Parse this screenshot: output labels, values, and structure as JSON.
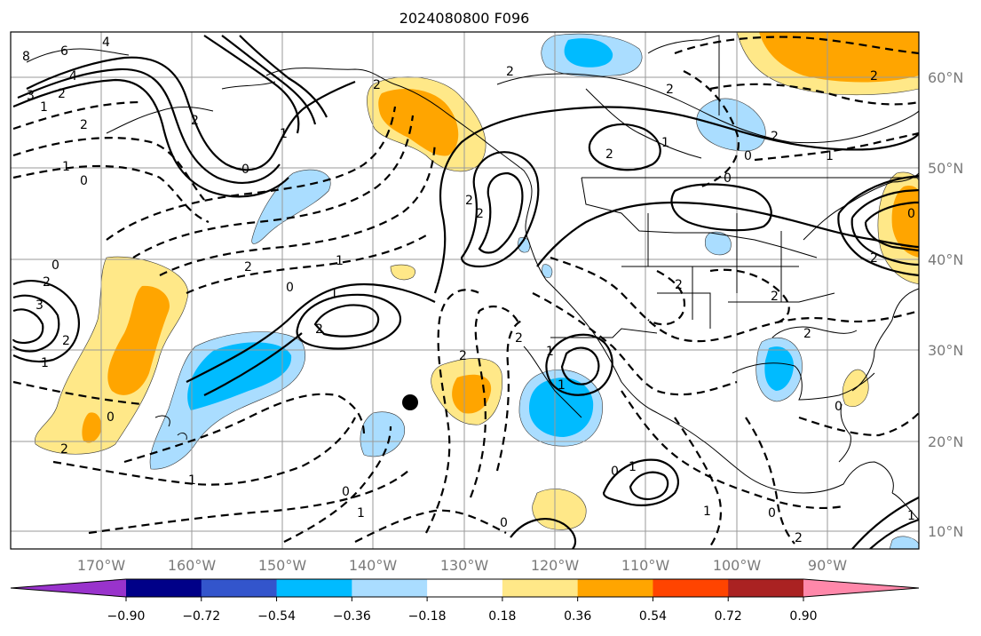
{
  "title": "2024080800 F096",
  "map": {
    "lon_labels": [
      "170°W",
      "160°W",
      "150°W",
      "140°W",
      "130°W",
      "120°W",
      "110°W",
      "100°W",
      "90°W"
    ],
    "lat_labels": [
      "60°N",
      "50°N",
      "40°N",
      "30°N",
      "20°N",
      "10°N"
    ],
    "contour_labels": [
      "8",
      "6",
      "4",
      "3",
      "2",
      "1",
      "2",
      "1",
      "0",
      "4",
      "2",
      "1",
      "0",
      "2",
      "1",
      "2",
      "2",
      "0",
      "2",
      "1",
      "2",
      "2",
      "0",
      "1",
      "2",
      "1",
      "2",
      "0",
      "2",
      "0",
      "1",
      "2",
      "2",
      "2",
      "0",
      "1",
      "2",
      "1",
      "0",
      "2",
      "0",
      "2",
      "3",
      "2",
      "1",
      "0",
      "1",
      "2",
      "1",
      "0",
      "1",
      "0",
      "1",
      "0",
      "2",
      "2",
      "2"
    ],
    "marker": "filled-circle-marker"
  },
  "colorbar": {
    "colors": [
      "#9933cc",
      "#000088",
      "#3355cc",
      "#00bbff",
      "#aaddff",
      "#ffffff",
      "#ffe888",
      "#ffa500",
      "#ff4400",
      "#aa2222",
      "#ff88aa"
    ],
    "tick_labels": [
      "−0.90",
      "−0.72",
      "−0.54",
      "−0.36",
      "−0.18",
      "0.18",
      "0.36",
      "0.54",
      "0.72",
      "0.90"
    ]
  },
  "fill_colors": {
    "light_blue": "#aaddff",
    "blue": "#00bbff",
    "light_yellow": "#ffe888",
    "orange": "#ffa500"
  }
}
